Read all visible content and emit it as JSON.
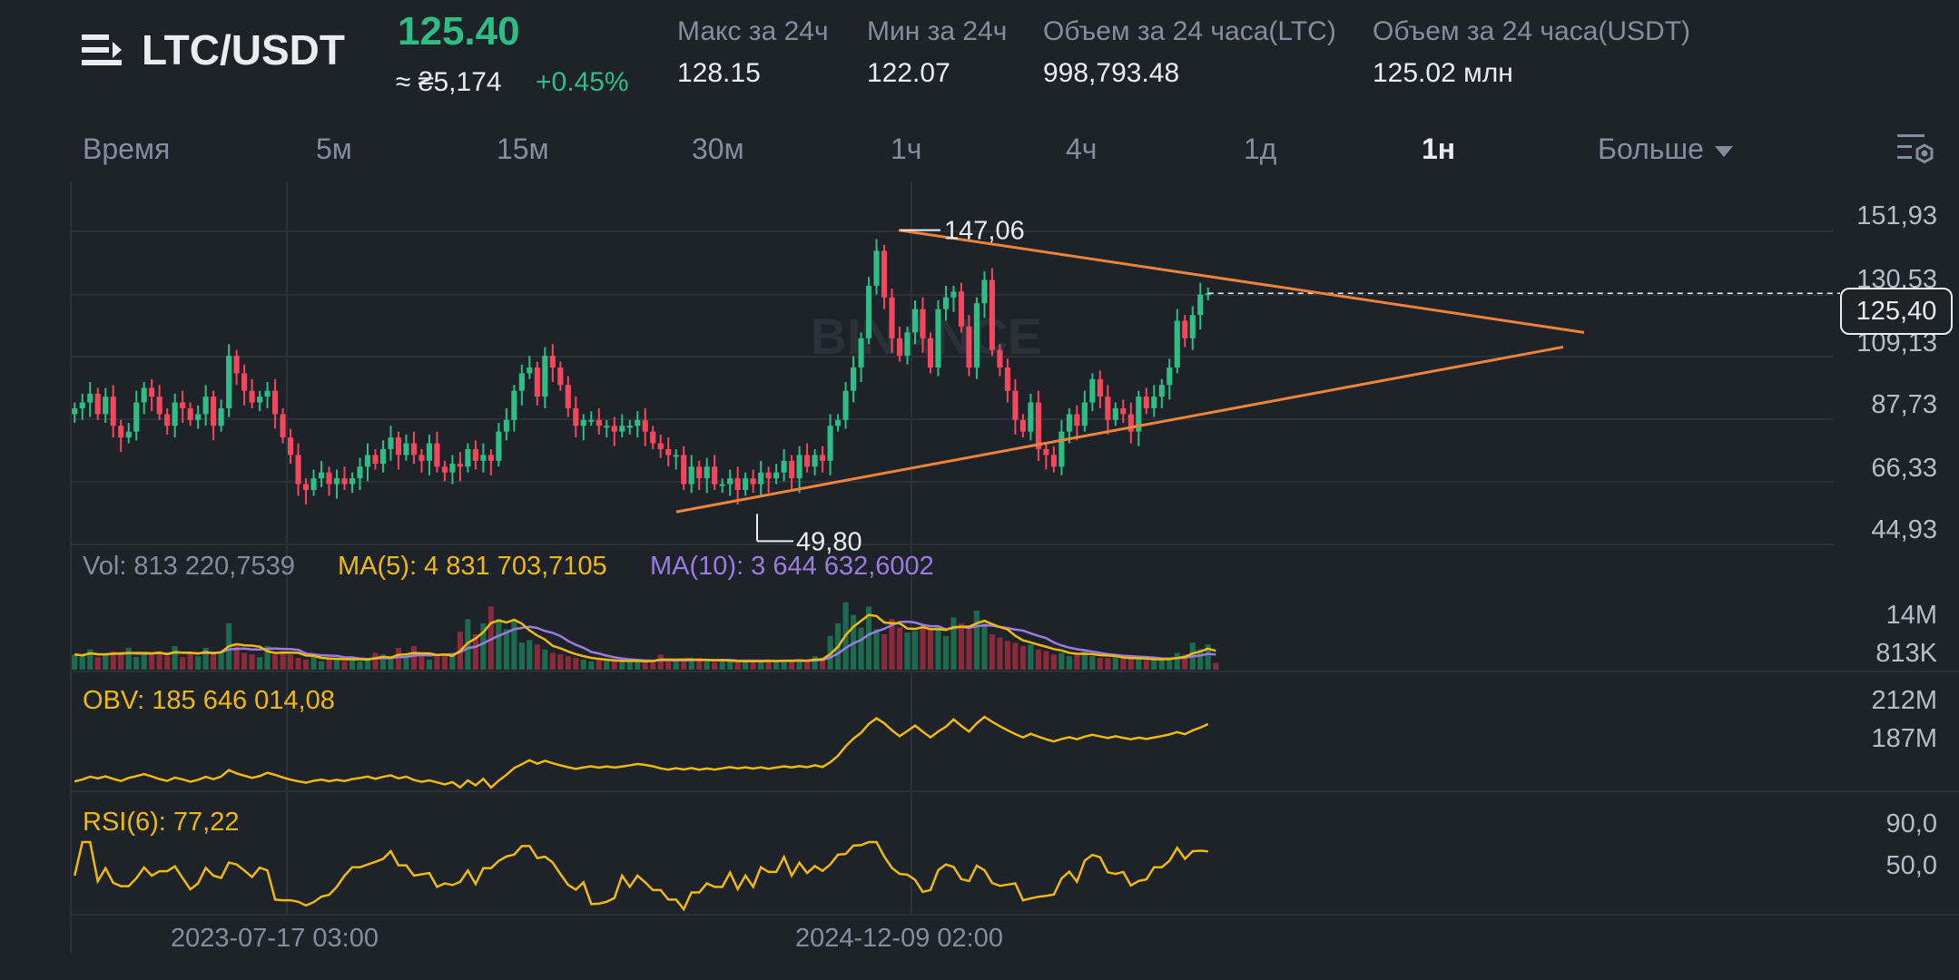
{
  "header": {
    "pair": "LTC/USDT",
    "price": "125.40",
    "fiat_price": "≈ ₴5,174",
    "change": "+0.45%",
    "stats": [
      {
        "label": "Макс за 24ч",
        "value": "128.15"
      },
      {
        "label": "Мин за 24ч",
        "value": "122.07"
      },
      {
        "label": "Объем за 24 часа(LTC)",
        "value": "998,793.48"
      },
      {
        "label": "Объем за 24 часа(USDT)",
        "value": "125.02 млн"
      }
    ]
  },
  "tabs": [
    "Время",
    "5м",
    "15м",
    "30м",
    "1ч",
    "4ч",
    "1д",
    "1н",
    "Больше"
  ],
  "active_tab": "1н",
  "price_axis": [
    "151,93",
    "130,53",
    "109,13",
    "87,73",
    "66,33",
    "44,93"
  ],
  "current_price_label": "125,40",
  "high_marker": "147,06",
  "low_marker": "49,80",
  "watermark": "BINANCE",
  "volume": {
    "vol_label": "Vol: 813 220,7539",
    "ma5_label": "MA(5): 4 831 703,7105",
    "ma10_label": "MA(10): 3 644 632,6002",
    "axis": [
      "14M",
      "813K"
    ]
  },
  "obv": {
    "label": "OBV: 185 646 014,08",
    "axis": [
      "212M",
      "187M"
    ]
  },
  "rsi": {
    "label": "RSI(6): 77,22",
    "axis": [
      "90,0",
      "50,0"
    ]
  },
  "time_axis": [
    "2023-07-17 03:00",
    "2024-12-09 02:00"
  ],
  "colors": {
    "up": "#2ebd85",
    "down": "#f6465d",
    "accent_line": "#f0833a",
    "ma5": "#f0b90b",
    "ma10": "#9c7ce0",
    "obv": "#f0b90b",
    "rsi": "#f0b90b",
    "background": "#1e2329"
  },
  "icons": {
    "menu": "list-menu-icon",
    "more": "caret-down-icon",
    "settings": "chart-settings-icon"
  },
  "chart_data": {
    "type": "candlestick",
    "pair": "LTC/USDT",
    "interval": "1н",
    "ylim": [
      44.93,
      151.93
    ],
    "high": 147.06,
    "low": 49.8,
    "last": 125.4,
    "trendlines": [
      {
        "name": "upper",
        "from_price": 147.06,
        "to_price": 112.0
      },
      {
        "name": "lower",
        "from_price": 50.5,
        "to_price": 107.0
      }
    ],
    "closes": [
      86,
      88,
      91,
      84,
      90,
      80,
      76,
      78,
      88,
      93,
      90,
      84,
      80,
      88,
      86,
      82,
      84,
      90,
      80,
      86,
      104,
      98,
      92,
      88,
      90,
      92,
      84,
      76,
      70,
      60,
      58,
      62,
      64,
      60,
      62,
      60,
      62,
      66,
      70,
      67,
      72,
      76,
      70,
      74,
      70,
      68,
      74,
      66,
      64,
      67,
      66,
      72,
      68,
      70,
      68,
      78,
      82,
      92,
      98,
      100,
      90,
      104,
      100,
      94,
      86,
      80,
      82,
      82,
      80,
      80,
      78,
      80,
      80,
      82,
      78,
      74,
      72,
      70,
      70,
      60,
      66,
      62,
      66,
      60,
      60,
      62,
      58,
      62,
      60,
      64,
      62,
      64,
      68,
      62,
      70,
      66,
      70,
      68,
      80,
      82,
      92,
      100,
      110,
      128,
      140,
      124,
      110,
      104,
      112,
      120,
      110,
      100,
      120,
      124,
      126,
      114,
      100,
      122,
      130,
      106,
      100,
      92,
      82,
      78,
      88,
      72,
      70,
      66,
      78,
      84,
      80,
      88,
      96,
      90,
      82,
      86,
      84,
      78,
      90,
      86,
      90,
      94,
      100,
      116,
      110,
      118,
      125,
      125.4
    ],
    "volume": [
      1.8,
      1.6,
      2.4,
      1.5,
      1.8,
      2.2,
      1.8,
      2.6,
      1.5,
      1.8,
      2.0,
      2.2,
      1.6,
      2.8,
      1.5,
      2.0,
      1.6,
      2.6,
      2.0,
      2.2,
      5.5,
      2.8,
      2.0,
      1.8,
      1.5,
      2.8,
      1.8,
      2.2,
      1.8,
      1.4,
      1.2,
      1.6,
      1.0,
      1.4,
      1.2,
      1.0,
      1.6,
      1.0,
      1.2,
      2.0,
      1.8,
      1.2,
      2.6,
      1.5,
      2.8,
      1.6,
      1.2,
      1.6,
      1.8,
      2.0,
      4.5,
      6.0,
      4.2,
      5.5,
      7.5,
      6.0,
      4.8,
      5.8,
      3.2,
      3.5,
      3.0,
      2.4,
      2.0,
      1.8,
      1.6,
      1.4,
      1.2,
      1.0,
      1.2,
      1.1,
      1.0,
      0.9,
      1.0,
      1.2,
      0.9,
      1.1,
      1.8,
      1.0,
      1.1,
      1.0,
      1.2,
      1.4,
      1.0,
      0.9,
      1.1,
      1.0,
      1.1,
      0.9,
      1.0,
      1.0,
      1.2,
      1.0,
      1.1,
      1.0,
      1.2,
      1.0,
      1.6,
      1.4,
      4.0,
      5.5,
      8.0,
      6.5,
      5.0,
      7.5,
      4.8,
      4.2,
      6.0,
      5.0,
      4.4,
      4.6,
      5.2,
      4.8,
      5.0,
      4.0,
      6.2,
      5.5,
      4.8,
      7.0,
      5.5,
      4.2,
      3.8,
      3.4,
      3.2,
      2.8,
      3.0,
      2.4,
      2.2,
      1.8,
      2.0,
      1.6,
      1.8,
      2.2,
      1.6,
      1.4,
      1.4,
      1.5,
      1.3,
      1.2,
      1.4,
      1.1,
      1.2,
      1.2,
      1.4,
      2.0,
      1.8,
      3.2,
      2.4,
      3.0,
      0.8
    ],
    "volume_unit": "M",
    "volume_axis_labels": [
      "14M",
      "813K"
    ],
    "obv_last": 185646014.08,
    "rsi_last": 77.22,
    "rsi_axis": [
      90.0,
      50.0
    ],
    "time_labels": [
      "2023-07-17 03:00",
      "2024-12-09 02:00"
    ]
  }
}
